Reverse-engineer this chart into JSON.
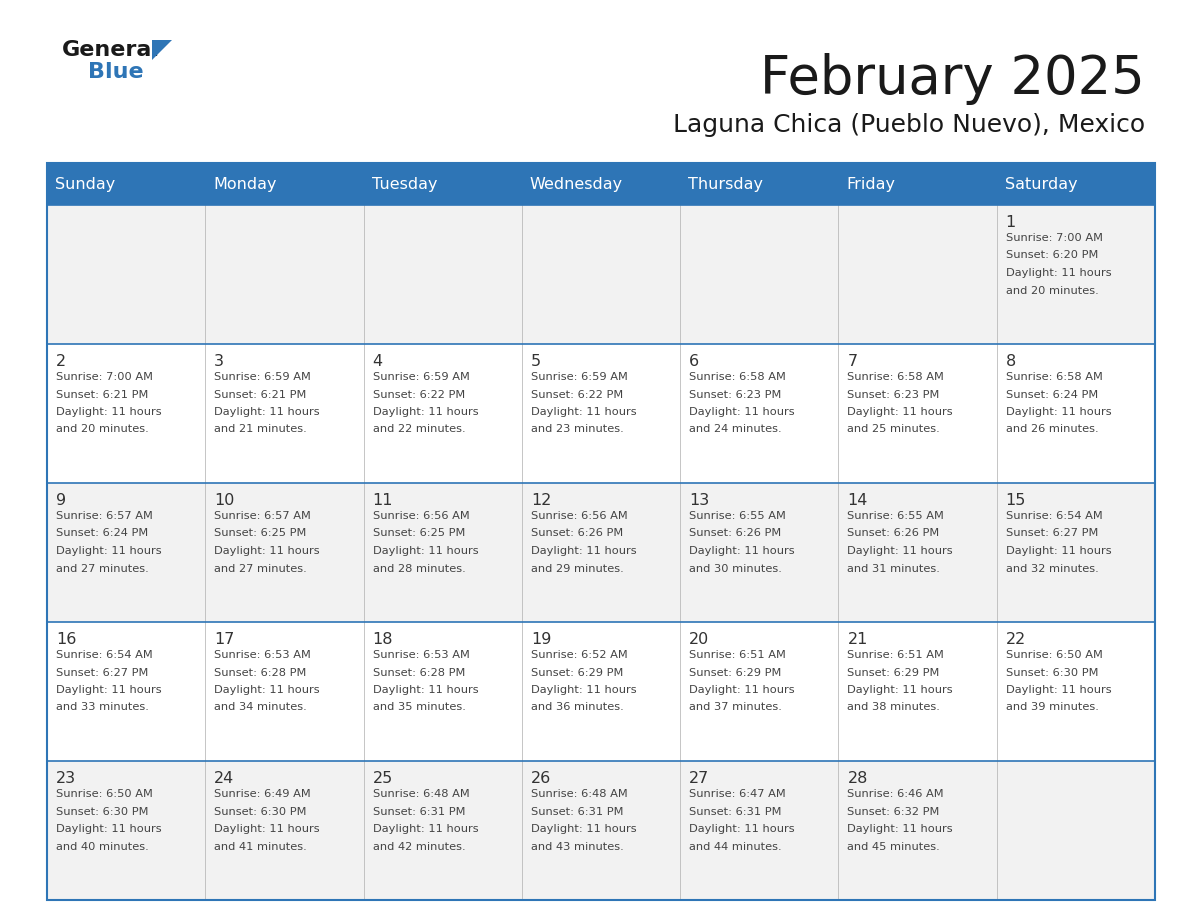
{
  "title": "February 2025",
  "subtitle": "Laguna Chica (Pueblo Nuevo), Mexico",
  "header_bg": "#2E75B6",
  "header_text_color": "#FFFFFF",
  "cell_bg_odd": "#F2F2F2",
  "cell_bg_even": "#FFFFFF",
  "grid_line_color": "#2E75B6",
  "separator_color": "#2E75B6",
  "day_number_color": "#333333",
  "cell_text_color": "#444444",
  "day_names": [
    "Sunday",
    "Monday",
    "Tuesday",
    "Wednesday",
    "Thursday",
    "Friday",
    "Saturday"
  ],
  "calendar": [
    [
      {
        "day": null,
        "sunrise": null,
        "sunset": null,
        "daylight_line1": null,
        "daylight_line2": null
      },
      {
        "day": null,
        "sunrise": null,
        "sunset": null,
        "daylight_line1": null,
        "daylight_line2": null
      },
      {
        "day": null,
        "sunrise": null,
        "sunset": null,
        "daylight_line1": null,
        "daylight_line2": null
      },
      {
        "day": null,
        "sunrise": null,
        "sunset": null,
        "daylight_line1": null,
        "daylight_line2": null
      },
      {
        "day": null,
        "sunrise": null,
        "sunset": null,
        "daylight_line1": null,
        "daylight_line2": null
      },
      {
        "day": null,
        "sunrise": null,
        "sunset": null,
        "daylight_line1": null,
        "daylight_line2": null
      },
      {
        "day": 1,
        "sunrise": "7:00 AM",
        "sunset": "6:20 PM",
        "daylight_line1": "Daylight: 11 hours",
        "daylight_line2": "and 20 minutes."
      }
    ],
    [
      {
        "day": 2,
        "sunrise": "7:00 AM",
        "sunset": "6:21 PM",
        "daylight_line1": "Daylight: 11 hours",
        "daylight_line2": "and 20 minutes."
      },
      {
        "day": 3,
        "sunrise": "6:59 AM",
        "sunset": "6:21 PM",
        "daylight_line1": "Daylight: 11 hours",
        "daylight_line2": "and 21 minutes."
      },
      {
        "day": 4,
        "sunrise": "6:59 AM",
        "sunset": "6:22 PM",
        "daylight_line1": "Daylight: 11 hours",
        "daylight_line2": "and 22 minutes."
      },
      {
        "day": 5,
        "sunrise": "6:59 AM",
        "sunset": "6:22 PM",
        "daylight_line1": "Daylight: 11 hours",
        "daylight_line2": "and 23 minutes."
      },
      {
        "day": 6,
        "sunrise": "6:58 AM",
        "sunset": "6:23 PM",
        "daylight_line1": "Daylight: 11 hours",
        "daylight_line2": "and 24 minutes."
      },
      {
        "day": 7,
        "sunrise": "6:58 AM",
        "sunset": "6:23 PM",
        "daylight_line1": "Daylight: 11 hours",
        "daylight_line2": "and 25 minutes."
      },
      {
        "day": 8,
        "sunrise": "6:58 AM",
        "sunset": "6:24 PM",
        "daylight_line1": "Daylight: 11 hours",
        "daylight_line2": "and 26 minutes."
      }
    ],
    [
      {
        "day": 9,
        "sunrise": "6:57 AM",
        "sunset": "6:24 PM",
        "daylight_line1": "Daylight: 11 hours",
        "daylight_line2": "and 27 minutes."
      },
      {
        "day": 10,
        "sunrise": "6:57 AM",
        "sunset": "6:25 PM",
        "daylight_line1": "Daylight: 11 hours",
        "daylight_line2": "and 27 minutes."
      },
      {
        "day": 11,
        "sunrise": "6:56 AM",
        "sunset": "6:25 PM",
        "daylight_line1": "Daylight: 11 hours",
        "daylight_line2": "and 28 minutes."
      },
      {
        "day": 12,
        "sunrise": "6:56 AM",
        "sunset": "6:26 PM",
        "daylight_line1": "Daylight: 11 hours",
        "daylight_line2": "and 29 minutes."
      },
      {
        "day": 13,
        "sunrise": "6:55 AM",
        "sunset": "6:26 PM",
        "daylight_line1": "Daylight: 11 hours",
        "daylight_line2": "and 30 minutes."
      },
      {
        "day": 14,
        "sunrise": "6:55 AM",
        "sunset": "6:26 PM",
        "daylight_line1": "Daylight: 11 hours",
        "daylight_line2": "and 31 minutes."
      },
      {
        "day": 15,
        "sunrise": "6:54 AM",
        "sunset": "6:27 PM",
        "daylight_line1": "Daylight: 11 hours",
        "daylight_line2": "and 32 minutes."
      }
    ],
    [
      {
        "day": 16,
        "sunrise": "6:54 AM",
        "sunset": "6:27 PM",
        "daylight_line1": "Daylight: 11 hours",
        "daylight_line2": "and 33 minutes."
      },
      {
        "day": 17,
        "sunrise": "6:53 AM",
        "sunset": "6:28 PM",
        "daylight_line1": "Daylight: 11 hours",
        "daylight_line2": "and 34 minutes."
      },
      {
        "day": 18,
        "sunrise": "6:53 AM",
        "sunset": "6:28 PM",
        "daylight_line1": "Daylight: 11 hours",
        "daylight_line2": "and 35 minutes."
      },
      {
        "day": 19,
        "sunrise": "6:52 AM",
        "sunset": "6:29 PM",
        "daylight_line1": "Daylight: 11 hours",
        "daylight_line2": "and 36 minutes."
      },
      {
        "day": 20,
        "sunrise": "6:51 AM",
        "sunset": "6:29 PM",
        "daylight_line1": "Daylight: 11 hours",
        "daylight_line2": "and 37 minutes."
      },
      {
        "day": 21,
        "sunrise": "6:51 AM",
        "sunset": "6:29 PM",
        "daylight_line1": "Daylight: 11 hours",
        "daylight_line2": "and 38 minutes."
      },
      {
        "day": 22,
        "sunrise": "6:50 AM",
        "sunset": "6:30 PM",
        "daylight_line1": "Daylight: 11 hours",
        "daylight_line2": "and 39 minutes."
      }
    ],
    [
      {
        "day": 23,
        "sunrise": "6:50 AM",
        "sunset": "6:30 PM",
        "daylight_line1": "Daylight: 11 hours",
        "daylight_line2": "and 40 minutes."
      },
      {
        "day": 24,
        "sunrise": "6:49 AM",
        "sunset": "6:30 PM",
        "daylight_line1": "Daylight: 11 hours",
        "daylight_line2": "and 41 minutes."
      },
      {
        "day": 25,
        "sunrise": "6:48 AM",
        "sunset": "6:31 PM",
        "daylight_line1": "Daylight: 11 hours",
        "daylight_line2": "and 42 minutes."
      },
      {
        "day": 26,
        "sunrise": "6:48 AM",
        "sunset": "6:31 PM",
        "daylight_line1": "Daylight: 11 hours",
        "daylight_line2": "and 43 minutes."
      },
      {
        "day": 27,
        "sunrise": "6:47 AM",
        "sunset": "6:31 PM",
        "daylight_line1": "Daylight: 11 hours",
        "daylight_line2": "and 44 minutes."
      },
      {
        "day": 28,
        "sunrise": "6:46 AM",
        "sunset": "6:32 PM",
        "daylight_line1": "Daylight: 11 hours",
        "daylight_line2": "and 45 minutes."
      },
      {
        "day": null,
        "sunrise": null,
        "sunset": null,
        "daylight_line1": null,
        "daylight_line2": null
      }
    ]
  ],
  "logo_general_color": "#1a1a1a",
  "logo_blue_color": "#2E75B6",
  "logo_triangle_color": "#2E75B6"
}
